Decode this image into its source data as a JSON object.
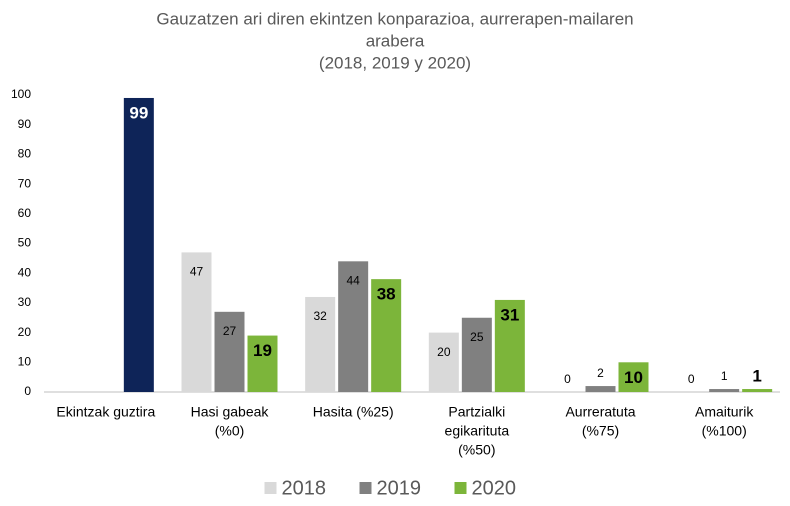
{
  "chart_data": {
    "type": "bar",
    "title": [
      "Gauzatzen ari diren ekintzen konparazioa, aurrerapen-mailaren",
      "arabera",
      "(2018, 2019 y  2020)"
    ],
    "categories": [
      [
        "Ekintzak guztira"
      ],
      [
        "Hasi gabeak",
        "(%0)"
      ],
      [
        "Hasita (%25)"
      ],
      [
        "Partzialki",
        "egikarituta",
        "(%50)"
      ],
      [
        "Aurreratuta",
        "(%75)"
      ],
      [
        "Amaiturik",
        "(%100)"
      ]
    ],
    "series": [
      {
        "name": "2018",
        "color": "#d9d9d9",
        "values": [
          null,
          47,
          32,
          20,
          0,
          0
        ]
      },
      {
        "name": "2019",
        "color": "#808080",
        "values": [
          null,
          27,
          44,
          25,
          2,
          1
        ]
      },
      {
        "name": "2020",
        "color": "#7cb53a",
        "values": [
          99,
          19,
          38,
          31,
          10,
          1
        ],
        "colors": [
          "#0e2458",
          "#7cb53a",
          "#7cb53a",
          "#7cb53a",
          "#7cb53a",
          "#7cb53a"
        ]
      }
    ],
    "ylim": [
      0,
      100
    ],
    "yticks": [
      0,
      10,
      20,
      30,
      40,
      50,
      60,
      70,
      80,
      90,
      100
    ],
    "grid": false,
    "legend": "bottom"
  }
}
